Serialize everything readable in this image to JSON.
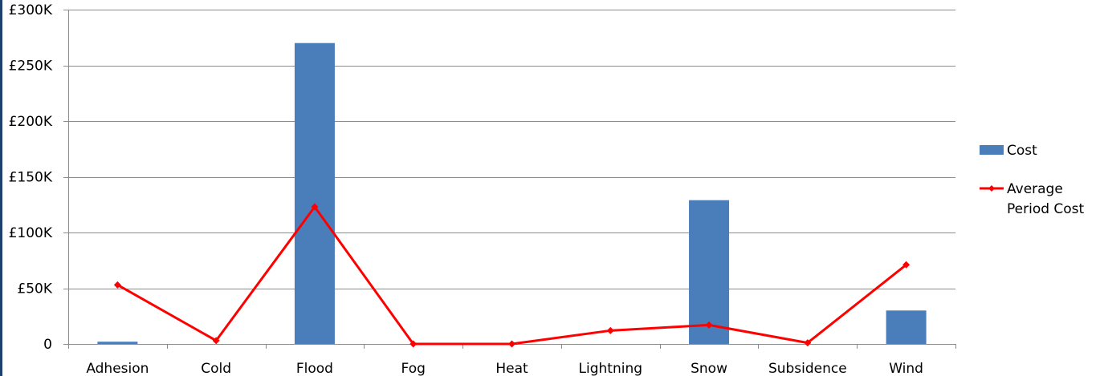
{
  "chart_data": {
    "type": "bar",
    "categories": [
      "Adhesion",
      "Cold",
      "Flood",
      "Fog",
      "Heat",
      "Lightning",
      "Snow",
      "Subsidence",
      "Wind"
    ],
    "series": [
      {
        "name": "Cost",
        "type": "bar",
        "color": "#4a7ebb",
        "values": [
          2000,
          0,
          270000,
          0,
          0,
          0,
          129000,
          0,
          30000
        ]
      },
      {
        "name": "Average Period Cost",
        "type": "line",
        "color": "#ff0000",
        "values": [
          53000,
          3000,
          123000,
          0,
          0,
          12000,
          17000,
          1000,
          71000
        ]
      }
    ],
    "ylim": [
      0,
      300000
    ],
    "yticks": [
      0,
      50000,
      100000,
      150000,
      200000,
      250000,
      300000
    ],
    "ytick_labels": [
      "0",
      "£50K",
      "£100K",
      "£150K",
      "£200K",
      "£250K",
      "£300K"
    ],
    "grid": true,
    "legend": "right",
    "legend_entries": [
      {
        "lines": [
          "Cost"
        ]
      },
      {
        "lines": [
          "Average",
          "Period Cost"
        ]
      }
    ],
    "title": "",
    "xlabel": "",
    "ylabel": ""
  }
}
